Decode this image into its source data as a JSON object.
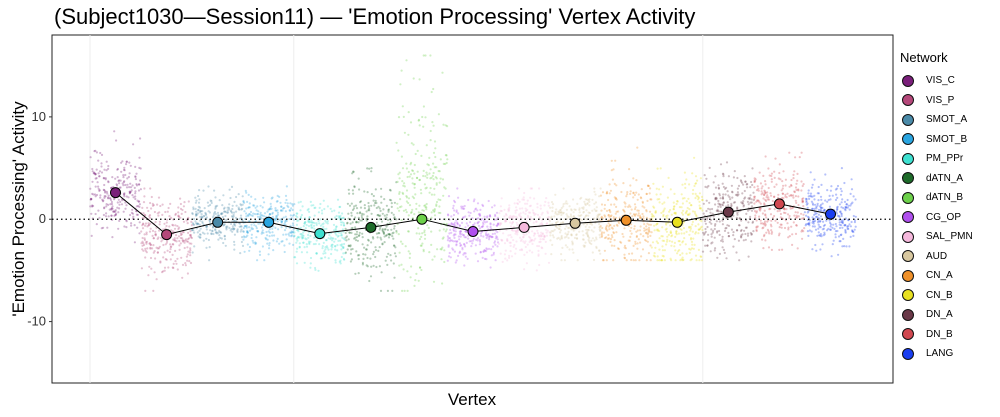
{
  "chart_data": {
    "type": "scatter",
    "title": "(Subject1030—Session11) — 'Emotion Processing' Vertex Activity",
    "xlabel": "Vertex",
    "ylabel": "'Emotion Processing' Activity",
    "ylim": [
      -16,
      18
    ],
    "yticks": [
      -10,
      0,
      10
    ],
    "ytick_labels": [
      "-10",
      "0",
      "10"
    ],
    "reference_line_y": 0,
    "legend_title": "Network",
    "legend_position": "right",
    "grid": true,
    "networks": [
      {
        "name": "VIS_C",
        "color": "#7a1f7a",
        "mean": 2.6,
        "spread": 2.0,
        "low": -4,
        "high": 11
      },
      {
        "name": "VIS_P",
        "color": "#b5487a",
        "mean": -1.5,
        "spread": 1.8,
        "low": -7,
        "high": 3
      },
      {
        "name": "SMOT_A",
        "color": "#4a8aa8",
        "mean": -0.3,
        "spread": 1.3,
        "low": -4,
        "high": 3.5
      },
      {
        "name": "SMOT_B",
        "color": "#2aa5e0",
        "mean": -0.3,
        "spread": 1.5,
        "low": -4,
        "high": 3.5
      },
      {
        "name": "PM_PPr",
        "color": "#3ee0d0",
        "mean": -1.4,
        "spread": 1.5,
        "low": -7,
        "high": 2.5
      },
      {
        "name": "dATN_A",
        "color": "#1e6b2a",
        "mean": -0.8,
        "spread": 2.2,
        "low": -7,
        "high": 5
      },
      {
        "name": "dATN_B",
        "color": "#6cd04a",
        "mean": 0.0,
        "spread": 4.0,
        "low": -7,
        "high": 16
      },
      {
        "name": "CG_OP",
        "color": "#b050ee",
        "mean": -1.2,
        "spread": 1.5,
        "low": -5,
        "high": 3
      },
      {
        "name": "SAL_PMN",
        "color": "#f5b8dc",
        "mean": -0.8,
        "spread": 1.6,
        "low": -5,
        "high": 3
      },
      {
        "name": "AUD",
        "color": "#d8c8a0",
        "mean": -0.4,
        "spread": 1.5,
        "low": -4,
        "high": 3
      },
      {
        "name": "CN_A",
        "color": "#f0912a",
        "mean": -0.1,
        "spread": 2.0,
        "low": -4,
        "high": 7
      },
      {
        "name": "CN_B",
        "color": "#e8e020",
        "mean": -0.3,
        "spread": 2.2,
        "low": -4,
        "high": 6
      },
      {
        "name": "DN_A",
        "color": "#6a3848",
        "mean": 0.7,
        "spread": 2.0,
        "low": -4,
        "high": 6
      },
      {
        "name": "DN_B",
        "color": "#d04850",
        "mean": 1.5,
        "spread": 2.0,
        "low": -3,
        "high": 6.5
      },
      {
        "name": "LANG",
        "color": "#1a3ef0",
        "mean": 0.5,
        "spread": 1.5,
        "low": -4,
        "high": 5
      }
    ]
  }
}
